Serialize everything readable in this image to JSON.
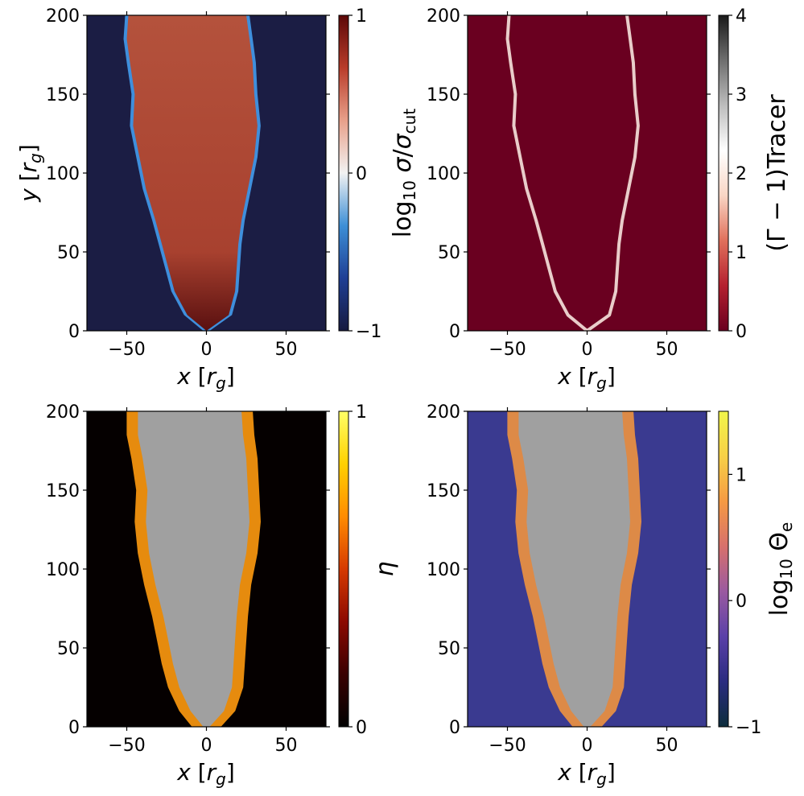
{
  "chart_data": [
    {
      "type": "heatmap",
      "panel": "top-left",
      "xlabel": "x [r_g]",
      "ylabel": "y [r_g]",
      "xlim": [
        -75,
        75
      ],
      "ylim": [
        0,
        200
      ],
      "xticks": [
        -50,
        0,
        50
      ],
      "yticks": [
        0,
        50,
        100,
        150,
        200
      ],
      "colorbar": {
        "label": "log10 σ/σcut",
        "range": [
          -1,
          1
        ],
        "ticks": [
          -1,
          0,
          1
        ],
        "tick_labels": [
          "−1",
          "0",
          "1"
        ],
        "colormap": [
          "#16193f",
          "#1f3f95",
          "#3d8fd6",
          "#f2f2f2",
          "#e8a08a",
          "#b93c2a",
          "#5c0808"
        ]
      },
      "background_color": "#1b1d44",
      "fill_color": "#b4523c",
      "edge_color": "#3f8fdc",
      "jet_boundary": {
        "y": [
          0,
          10,
          25,
          40,
          55,
          70,
          90,
          110,
          130,
          150,
          170,
          185,
          200
        ],
        "x_left": [
          0,
          -12,
          -20,
          -24,
          -28,
          -32,
          -38,
          -42,
          -46,
          -45,
          -48,
          -50,
          -49
        ],
        "x_right": [
          0,
          14,
          18,
          19,
          20,
          22,
          26,
          30,
          32,
          30,
          29,
          27,
          25
        ]
      }
    },
    {
      "type": "heatmap",
      "panel": "top-right",
      "xlabel": "x [r_g]",
      "ylabel": "",
      "xlim": [
        -75,
        75
      ],
      "ylim": [
        0,
        200
      ],
      "xticks": [
        -50,
        0,
        50
      ],
      "yticks": [
        0,
        50,
        100,
        150,
        200
      ],
      "colorbar": {
        "label": "(Γ − 1)Tracer",
        "range": [
          0,
          4
        ],
        "ticks": [
          0,
          1,
          2,
          3,
          4
        ],
        "tick_labels": [
          "0",
          "1",
          "2",
          "3",
          "4"
        ],
        "colormap": [
          "#69001f",
          "#b4202f",
          "#e0705b",
          "#f9d6c5",
          "#ffffff",
          "#bdbdbd",
          "#6e6e6e",
          "#1a1a1a"
        ]
      },
      "background_color": "#6a0020",
      "line_color": "#f7e3dd",
      "line_x_left": [
        0,
        -12,
        -20,
        -24,
        -28,
        -32,
        -38,
        -42,
        -46,
        -45,
        -48,
        -50,
        -49
      ],
      "line_x_right": [
        0,
        14,
        18,
        19,
        20,
        22,
        26,
        30,
        32,
        30,
        29,
        27,
        25
      ],
      "line_y": [
        0,
        10,
        25,
        40,
        55,
        70,
        90,
        110,
        130,
        150,
        170,
        185,
        200
      ]
    },
    {
      "type": "heatmap",
      "panel": "bottom-left",
      "xlabel": "x [r_g]",
      "ylabel": "",
      "xlim": [
        -75,
        75
      ],
      "ylim": [
        0,
        200
      ],
      "xticks": [
        -50,
        0,
        50
      ],
      "yticks": [
        0,
        50,
        100,
        150,
        200
      ],
      "colorbar": {
        "label": "η",
        "range": [
          0,
          1
        ],
        "ticks": [
          0,
          1
        ],
        "tick_labels": [
          "0",
          "1"
        ],
        "colormap": [
          "#000000",
          "#3a0000",
          "#8c0a00",
          "#d63a00",
          "#ff8c00",
          "#ffd000",
          "#ffff66"
        ]
      },
      "background_color": "#050000",
      "masked_color": "#a0a0a0",
      "sheath_color": "#ff9a10",
      "masked_boundary": {
        "y": [
          0,
          10,
          25,
          40,
          55,
          70,
          90,
          110,
          130,
          150,
          170,
          185,
          200
        ],
        "x_left": [
          -2,
          -10,
          -17,
          -21,
          -24,
          -27,
          -32,
          -36,
          -38,
          -37,
          -40,
          -43,
          -43
        ],
        "x_right": [
          2,
          11,
          16,
          17,
          18,
          19,
          21,
          25,
          27,
          26,
          25,
          23,
          22
        ]
      }
    },
    {
      "type": "heatmap",
      "panel": "bottom-right",
      "xlabel": "x [r_g]",
      "ylabel": "",
      "xlim": [
        -75,
        75
      ],
      "ylim": [
        0,
        200
      ],
      "xticks": [
        -50,
        0,
        50
      ],
      "yticks": [
        0,
        50,
        100,
        150,
        200
      ],
      "colorbar": {
        "label": "log10 Θe",
        "range": [
          -1,
          1.5
        ],
        "ticks": [
          -1,
          0,
          1
        ],
        "tick_labels": [
          "−1",
          "0",
          "1"
        ],
        "colormap": [
          "#0d2d3c",
          "#2a2c80",
          "#5a40a8",
          "#9a5aa0",
          "#d7706c",
          "#f59a43",
          "#f7d046",
          "#f2f64a"
        ]
      },
      "background_color": "#3a3a90",
      "masked_color": "#a0a0a0",
      "sheath_color": "#f0943f",
      "masked_boundary": {
        "y": [
          0,
          10,
          25,
          40,
          55,
          70,
          90,
          110,
          130,
          150,
          170,
          185,
          200
        ],
        "x_left": [
          -2,
          -10,
          -17,
          -21,
          -24,
          -27,
          -32,
          -36,
          -38,
          -37,
          -40,
          -43,
          -43
        ],
        "x_right": [
          2,
          11,
          16,
          17,
          18,
          19,
          21,
          25,
          27,
          26,
          25,
          23,
          22
        ]
      }
    }
  ]
}
